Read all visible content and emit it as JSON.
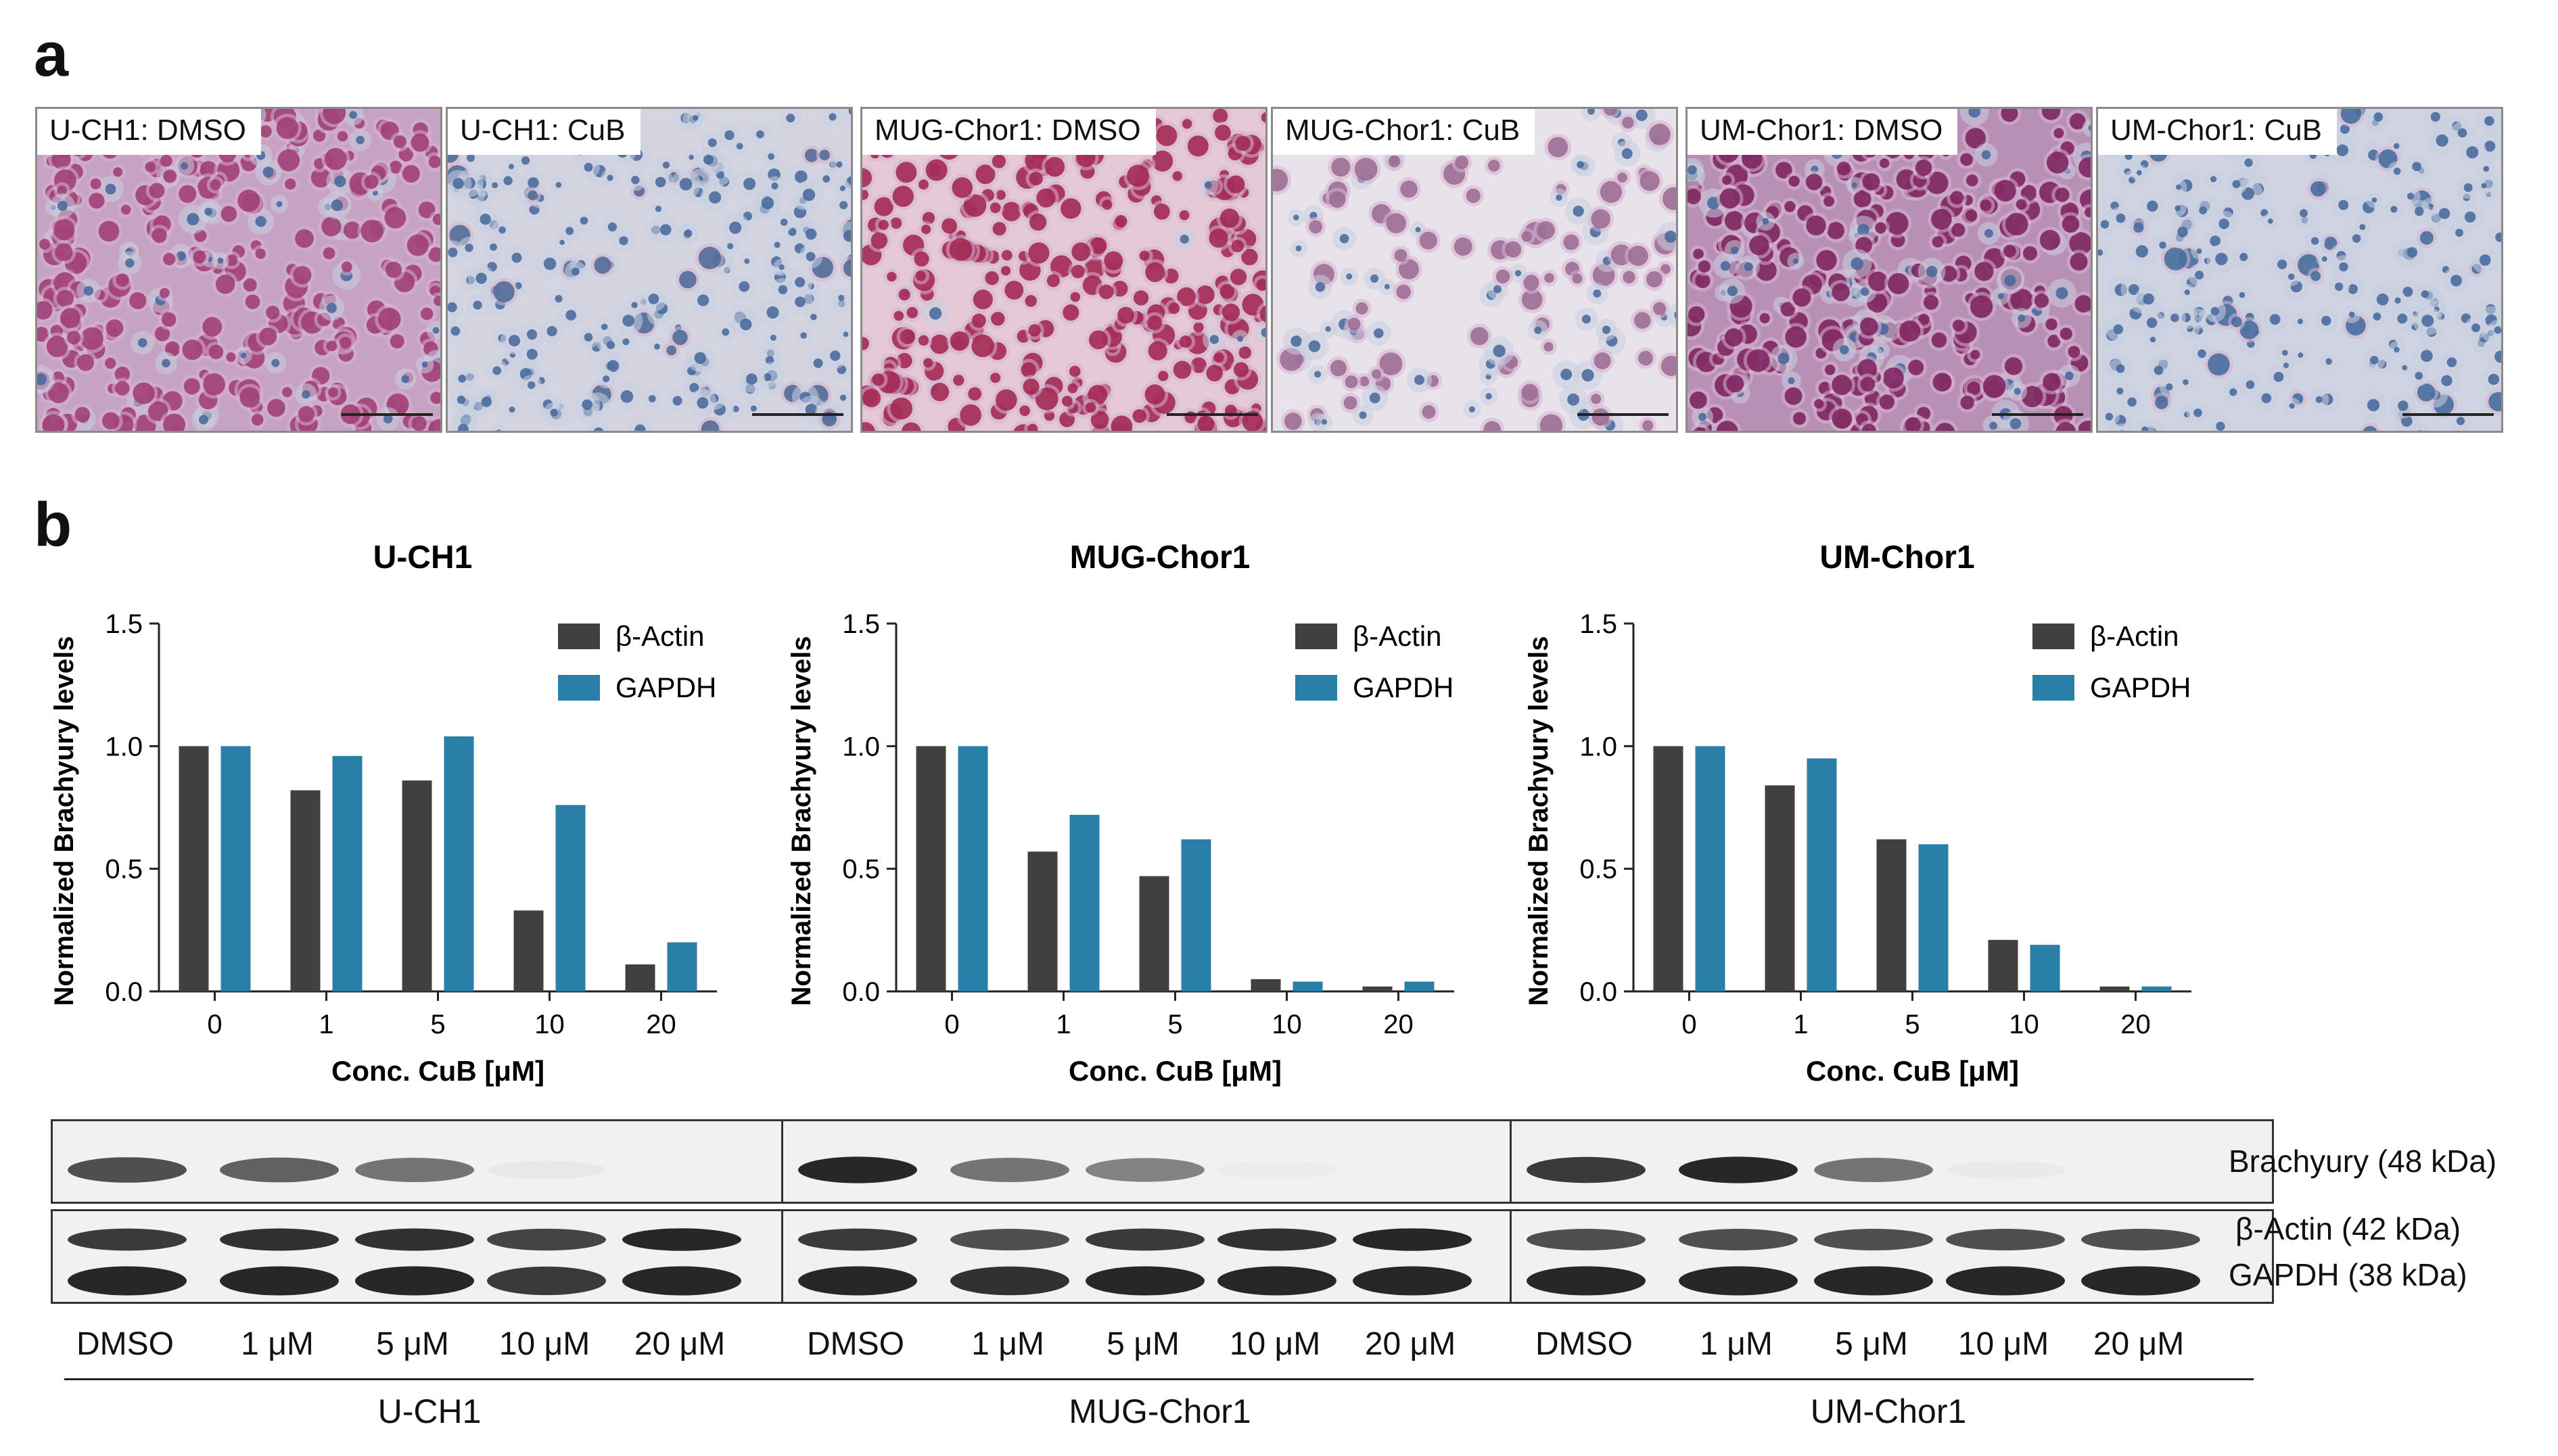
{
  "panels": {
    "a": "a",
    "b": "b"
  },
  "micrographs": [
    {
      "label": "U-CH1: DMSO",
      "tone": "#9e3a72",
      "bg": "#c6a3c3",
      "dense": 1.0,
      "bluish": 0.15
    },
    {
      "label": "U-CH1: CuB",
      "tone": "#4a6794",
      "bg": "#d5d5e2",
      "dense": 0.75,
      "bluish": 0.85
    },
    {
      "label": "MUG-Chor1: DMSO",
      "tone": "#a0224d",
      "bg": "#e5c9d6",
      "dense": 0.9,
      "bluish": 0.05
    },
    {
      "label": "MUG-Chor1: CuB",
      "tone": "#9a6a92",
      "bg": "#e8e2ea",
      "dense": 0.45,
      "bluish": 0.4
    },
    {
      "label": "UM-Chor1: DMSO",
      "tone": "#7a1f5a",
      "bg": "#b990b5",
      "dense": 1.0,
      "bluish": 0.2
    },
    {
      "label": "UM-Chor1: CuB",
      "tone": "#3f6a9a",
      "bg": "#cfd3e2",
      "dense": 0.7,
      "bluish": 0.85
    }
  ],
  "colors": {
    "actin": "#404040",
    "gapdh": "#2a7fa8"
  },
  "chart_data": [
    {
      "type": "bar",
      "title": "U-CH1",
      "xlabel": "Conc. CuB [μM]",
      "ylabel": "Normalized Brachyury levels",
      "categories": [
        "0",
        "1",
        "5",
        "10",
        "20"
      ],
      "ylim": [
        0,
        1.5
      ],
      "yticks": [
        "0.0",
        "0.5",
        "1.0",
        "1.5"
      ],
      "legend": "top-right",
      "series": [
        {
          "name": "β-Actin",
          "values": [
            1.0,
            0.82,
            0.86,
            0.33,
            0.11
          ]
        },
        {
          "name": "GAPDH",
          "values": [
            1.0,
            0.96,
            1.04,
            0.76,
            0.2
          ]
        }
      ]
    },
    {
      "type": "bar",
      "title": "MUG-Chor1",
      "xlabel": "Conc. CuB [μM]",
      "ylabel": "Normalized Brachyury levels",
      "categories": [
        "0",
        "1",
        "5",
        "10",
        "20"
      ],
      "ylim": [
        0,
        1.5
      ],
      "yticks": [
        "0.0",
        "0.5",
        "1.0",
        "1.5"
      ],
      "legend": "top-right",
      "series": [
        {
          "name": "β-Actin",
          "values": [
            1.0,
            0.57,
            0.47,
            0.05,
            0.02
          ]
        },
        {
          "name": "GAPDH",
          "values": [
            1.0,
            0.72,
            0.62,
            0.04,
            0.04
          ]
        }
      ]
    },
    {
      "type": "bar",
      "title": "UM-Chor1",
      "xlabel": "Conc. CuB [μM]",
      "ylabel": "Normalized Brachyury levels",
      "categories": [
        "0",
        "1",
        "5",
        "10",
        "20"
      ],
      "ylim": [
        0,
        1.5
      ],
      "yticks": [
        "0.0",
        "0.5",
        "1.0",
        "1.5"
      ],
      "legend": "top-right",
      "series": [
        {
          "name": "β-Actin",
          "values": [
            1.0,
            0.84,
            0.62,
            0.21,
            0.02
          ]
        },
        {
          "name": "GAPDH",
          "values": [
            1.0,
            0.95,
            0.6,
            0.19,
            0.02
          ]
        }
      ]
    }
  ],
  "blots": [
    {
      "cell_line": "U-CH1",
      "lanes": [
        "DMSO",
        "1 μM",
        "5 μM",
        "10 μM",
        "20 μM"
      ],
      "brachyury_intensity": [
        0.85,
        0.8,
        0.75,
        0.2,
        0.03
      ],
      "actin_intensity": [
        0.9,
        0.92,
        0.92,
        0.88,
        0.95
      ],
      "gapdh_intensity": [
        0.95,
        0.95,
        0.95,
        0.9,
        0.95
      ]
    },
    {
      "cell_line": "MUG-Chor1",
      "lanes": [
        "DMSO",
        "1 μM",
        "5 μM",
        "10 μM",
        "20 μM"
      ],
      "brachyury_intensity": [
        0.95,
        0.75,
        0.7,
        0.15,
        0.03
      ],
      "actin_intensity": [
        0.9,
        0.85,
        0.9,
        0.92,
        0.95
      ],
      "gapdh_intensity": [
        0.95,
        0.92,
        0.95,
        0.95,
        0.95
      ]
    },
    {
      "cell_line": "UM-Chor1",
      "lanes": [
        "DMSO",
        "1 μM",
        "5 μM",
        "10 μM",
        "20 μM"
      ],
      "brachyury_intensity": [
        0.9,
        0.95,
        0.75,
        0.18,
        0.05
      ],
      "actin_intensity": [
        0.85,
        0.85,
        0.85,
        0.85,
        0.85
      ],
      "gapdh_intensity": [
        0.95,
        0.95,
        0.95,
        0.95,
        0.95
      ]
    }
  ],
  "band_labels": {
    "brachyury": "Brachyury (48 kDa)",
    "actin": "β-Actin (42 kDa)",
    "gapdh": "GAPDH (38 kDa)"
  }
}
